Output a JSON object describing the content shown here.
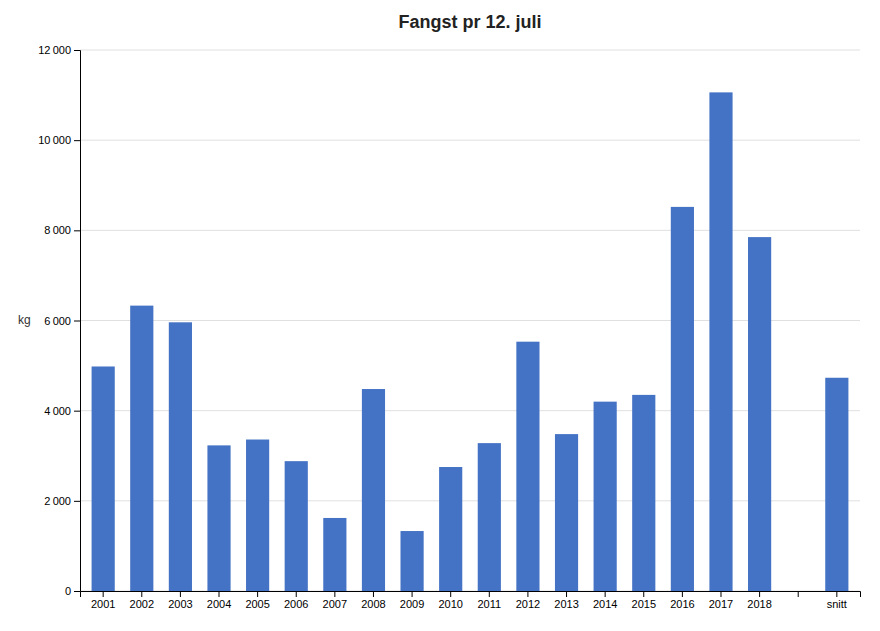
{
  "chart_data": {
    "type": "bar",
    "title": "Fangst pr 12. juli",
    "ylabel": "kg",
    "categories": [
      "2001",
      "2002",
      "2003",
      "2004",
      "2005",
      "2006",
      "2007",
      "2008",
      "2009",
      "2010",
      "2011",
      "2012",
      "2013",
      "2014",
      "2015",
      "2016",
      "2017",
      "2018",
      null,
      "snitt"
    ],
    "values": [
      4980,
      6330,
      5960,
      3230,
      3360,
      2880,
      1620,
      4480,
      1330,
      2750,
      3280,
      5530,
      3480,
      4200,
      4350,
      8520,
      11060,
      7850,
      0,
      4730
    ],
    "colors": [
      "#4472C4",
      "#4472C4",
      "#4472C4",
      "#4472C4",
      "#4472C4",
      "#4472C4",
      "#4472C4",
      "#4472C4",
      "#4472C4",
      "#4472C4",
      "#4472C4",
      "#4472C4",
      "#4472C4",
      "#4472C4",
      "#4472C4",
      "#4472C4",
      "#4472C4",
      "#4472C4",
      "#FFFFFF",
      "#4472C4"
    ],
    "ylim": [
      0,
      12000
    ],
    "yticks": [
      0,
      {
        "value": 2000,
        "label": "2 000"
      },
      {
        "value": 4000,
        "label": "4 000"
      },
      {
        "value": 6000,
        "label": "6 000"
      },
      {
        "value": 8000,
        "label": "8 000"
      },
      {
        "value": 10000,
        "label": "10 000"
      },
      {
        "value": 12000,
        "label": "12 000"
      }
    ],
    "grid": true
  }
}
